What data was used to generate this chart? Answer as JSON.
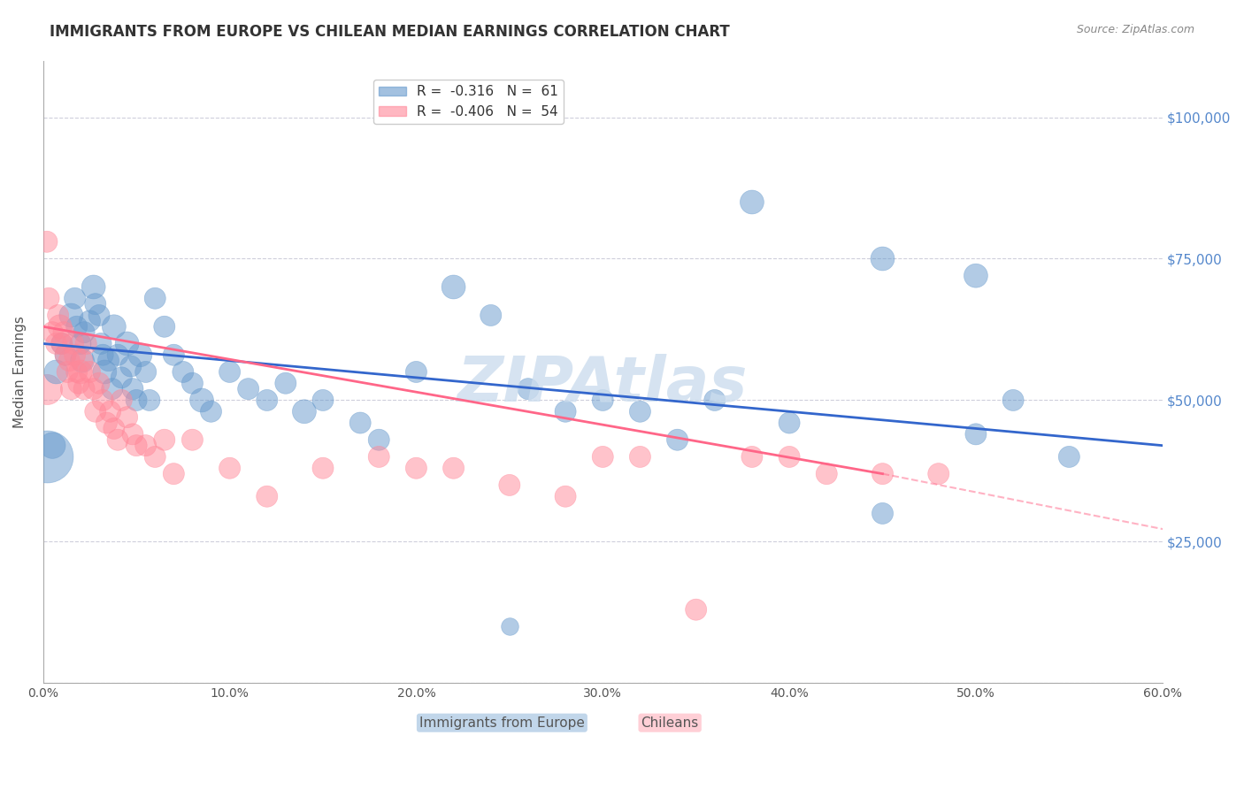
{
  "title": "IMMIGRANTS FROM EUROPE VS CHILEAN MEDIAN EARNINGS CORRELATION CHART",
  "source": "Source: ZipAtlas.com",
  "xlabel": "",
  "ylabel": "Median Earnings",
  "xlim": [
    0.0,
    0.6
  ],
  "ylim": [
    0,
    110000
  ],
  "yticks": [
    0,
    25000,
    50000,
    75000,
    100000
  ],
  "ytick_labels": [
    "",
    "$25,000",
    "$50,000",
    "$75,000",
    "$100,000"
  ],
  "xticks": [
    0.0,
    0.1,
    0.2,
    0.3,
    0.4,
    0.5,
    0.6
  ],
  "xtick_labels": [
    "0.0%",
    "10.0%",
    "20.0%",
    "30.0%",
    "40.0%",
    "50.0%",
    "60.0%"
  ],
  "legend_r1": "R =  -0.316   N =  61",
  "legend_r2": "R =  -0.406   N =  54",
  "legend_label1": "Immigrants from Europe",
  "legend_label2": "Chileans",
  "blue_color": "#6699CC",
  "pink_color": "#FF8899",
  "trend_blue": "#3366CC",
  "trend_pink": "#FF6688",
  "watermark": "ZIPAtlas",
  "watermark_color": "#CCDDEE",
  "blue_scatter_x": [
    0.005,
    0.007,
    0.01,
    0.012,
    0.015,
    0.017,
    0.018,
    0.02,
    0.021,
    0.022,
    0.025,
    0.027,
    0.028,
    0.03,
    0.031,
    0.032,
    0.033,
    0.035,
    0.037,
    0.038,
    0.04,
    0.042,
    0.045,
    0.047,
    0.048,
    0.05,
    0.052,
    0.055,
    0.057,
    0.06,
    0.065,
    0.07,
    0.075,
    0.08,
    0.085,
    0.09,
    0.1,
    0.11,
    0.12,
    0.13,
    0.14,
    0.15,
    0.17,
    0.18,
    0.2,
    0.22,
    0.24,
    0.26,
    0.28,
    0.3,
    0.32,
    0.34,
    0.36,
    0.4,
    0.45,
    0.5,
    0.55,
    0.45,
    0.5,
    0.52,
    0.38
  ],
  "blue_scatter_y": [
    42000,
    55000,
    60000,
    58000,
    65000,
    68000,
    63000,
    60000,
    57000,
    62000,
    64000,
    70000,
    67000,
    65000,
    60000,
    58000,
    55000,
    57000,
    52000,
    63000,
    58000,
    54000,
    60000,
    56000,
    52000,
    50000,
    58000,
    55000,
    50000,
    68000,
    63000,
    58000,
    55000,
    53000,
    50000,
    48000,
    55000,
    52000,
    50000,
    53000,
    48000,
    50000,
    46000,
    43000,
    55000,
    70000,
    65000,
    52000,
    48000,
    50000,
    48000,
    43000,
    50000,
    46000,
    30000,
    44000,
    40000,
    75000,
    72000,
    50000,
    85000
  ],
  "blue_scatter_s": [
    30,
    25,
    20,
    20,
    25,
    20,
    20,
    20,
    25,
    20,
    20,
    25,
    20,
    20,
    20,
    20,
    25,
    20,
    20,
    25,
    20,
    20,
    25,
    20,
    20,
    20,
    25,
    20,
    20,
    20,
    20,
    20,
    20,
    20,
    25,
    20,
    20,
    20,
    20,
    20,
    25,
    20,
    20,
    20,
    20,
    25,
    20,
    20,
    20,
    20,
    20,
    20,
    20,
    20,
    20,
    20,
    20,
    25,
    25,
    20,
    25
  ],
  "pink_scatter_x": [
    0.002,
    0.003,
    0.005,
    0.007,
    0.008,
    0.009,
    0.01,
    0.011,
    0.012,
    0.013,
    0.014,
    0.015,
    0.016,
    0.017,
    0.018,
    0.019,
    0.02,
    0.021,
    0.022,
    0.023,
    0.025,
    0.027,
    0.028,
    0.03,
    0.032,
    0.034,
    0.036,
    0.038,
    0.04,
    0.042,
    0.045,
    0.048,
    0.05,
    0.055,
    0.06,
    0.065,
    0.07,
    0.08,
    0.1,
    0.12,
    0.15,
    0.18,
    0.2,
    0.22,
    0.25,
    0.28,
    0.3,
    0.32,
    0.35,
    0.38,
    0.4,
    0.42,
    0.45,
    0.48
  ],
  "pink_scatter_y": [
    78000,
    68000,
    62000,
    60000,
    65000,
    63000,
    60000,
    62000,
    58000,
    55000,
    57000,
    52000,
    60000,
    58000,
    55000,
    53000,
    55000,
    57000,
    52000,
    60000,
    55000,
    52000,
    48000,
    53000,
    50000,
    46000,
    48000,
    45000,
    43000,
    50000,
    47000,
    44000,
    42000,
    42000,
    40000,
    43000,
    37000,
    43000,
    38000,
    33000,
    38000,
    40000,
    38000,
    38000,
    35000,
    33000,
    40000,
    40000,
    13000,
    40000,
    40000,
    37000,
    37000,
    37000
  ],
  "pink_scatter_s": [
    20,
    20,
    20,
    20,
    20,
    25,
    20,
    20,
    20,
    20,
    20,
    20,
    20,
    20,
    20,
    20,
    25,
    20,
    20,
    20,
    20,
    20,
    20,
    20,
    20,
    20,
    20,
    20,
    20,
    20,
    20,
    20,
    20,
    20,
    20,
    20,
    20,
    20,
    20,
    20,
    20,
    20,
    20,
    20,
    20,
    20,
    20,
    20,
    20,
    20,
    20,
    20,
    20,
    20
  ],
  "blue_extra_large_x": [
    0.002
  ],
  "blue_extra_large_y": [
    40000
  ],
  "blue_large_x": [
    0.25
  ],
  "blue_large_y": [
    10000
  ],
  "pink_large_x": [
    0.002
  ],
  "pink_large_y": [
    52000
  ]
}
